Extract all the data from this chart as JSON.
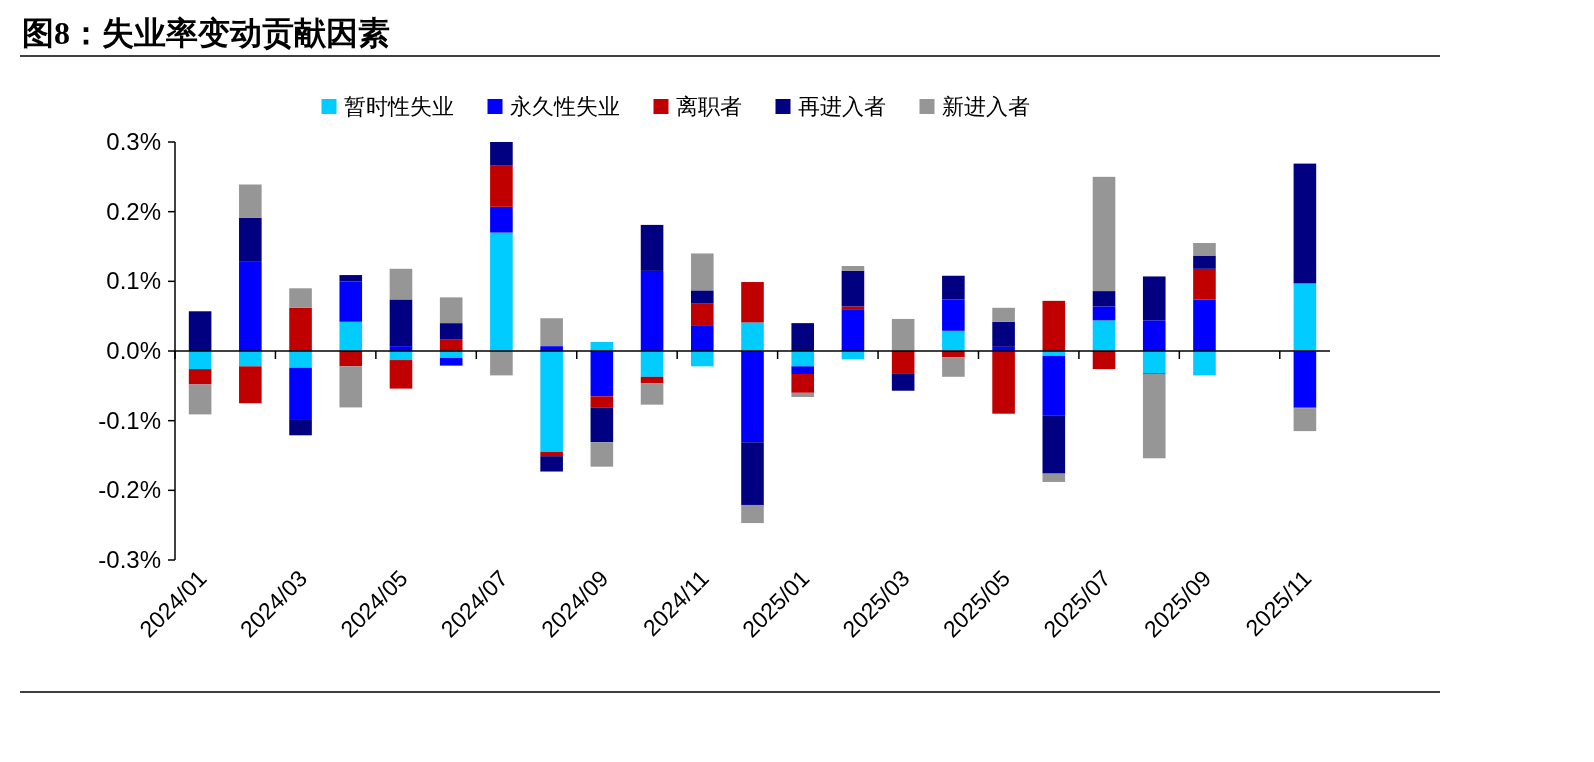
{
  "chart_data": {
    "type": "bar",
    "title": "图8：失业率变动贡献因素",
    "stacked": true,
    "legend": "top",
    "categories": [
      "2024/01",
      null,
      "2024/03",
      null,
      "2024/05",
      null,
      "2024/07",
      null,
      "2024/09",
      null,
      "2024/11",
      null,
      "2025/01",
      null,
      "2025/03",
      null,
      "2025/05",
      null,
      "2025/07",
      null,
      "2025/09",
      null,
      "2025/11"
    ],
    "ylim": [
      -0.3,
      0.3
    ],
    "yticks": [
      {
        "value": -0.3,
        "label": "-0.3%"
      },
      {
        "value": -0.2,
        "label": "-0.2%"
      },
      {
        "value": -0.1,
        "label": "-0.1%"
      },
      {
        "value": 0,
        "label": "0.0%"
      },
      {
        "value": 0.1,
        "label": "0.1%"
      },
      {
        "value": 0.2,
        "label": "0.2%"
      },
      {
        "value": 0.3,
        "label": "0.3%"
      }
    ],
    "series": [
      {
        "name": "暂时性失业",
        "color": "#00ccff",
        "values": [
          -0.026,
          -0.022,
          -0.024,
          0.042,
          -0.013,
          -0.01,
          0.17,
          -0.145,
          0.013,
          -0.037,
          -0.022,
          0.041,
          -0.022,
          -0.012,
          0,
          0.029,
          0,
          -0.007,
          0.044,
          -0.032,
          -0.035,
          null,
          0.097
        ]
      },
      {
        "name": "永久性失业",
        "color": "#0000ff",
        "values": [
          0,
          0.128,
          -0.075,
          0.058,
          0.007,
          -0.011,
          0.037,
          0.007,
          -0.065,
          0.115,
          0.036,
          -0.131,
          -0.011,
          0.06,
          0,
          0.045,
          0.006,
          -0.086,
          0.02,
          0.044,
          0.074,
          null,
          -0.081
        ]
      },
      {
        "name": "离职者",
        "color": "#c00000",
        "values": [
          -0.022,
          -0.053,
          0.062,
          -0.022,
          -0.041,
          0.017,
          0.059,
          -0.006,
          -0.016,
          -0.009,
          0.032,
          0.058,
          -0.027,
          0.004,
          -0.032,
          -0.009,
          -0.09,
          0.072,
          -0.026,
          -0.001,
          0.044,
          null,
          -0.001
        ]
      },
      {
        "name": "再进入者",
        "color": "#000080",
        "values": [
          0.057,
          0.063,
          -0.022,
          0.009,
          0.067,
          0.023,
          0.034,
          -0.022,
          -0.05,
          0.066,
          0.019,
          -0.09,
          0.04,
          0.051,
          -0.025,
          0.034,
          0.036,
          -0.083,
          0.022,
          0.063,
          0.019,
          null,
          0.172
        ]
      },
      {
        "name": "新进入者",
        "color": "#969696",
        "values": [
          -0.043,
          0.048,
          0.028,
          -0.059,
          0.044,
          0.037,
          -0.035,
          0.04,
          -0.035,
          -0.031,
          0.053,
          -0.026,
          -0.006,
          0.007,
          0.046,
          -0.028,
          0.02,
          -0.012,
          0.164,
          -0.121,
          0.018,
          null,
          -0.033
        ]
      }
    ]
  }
}
